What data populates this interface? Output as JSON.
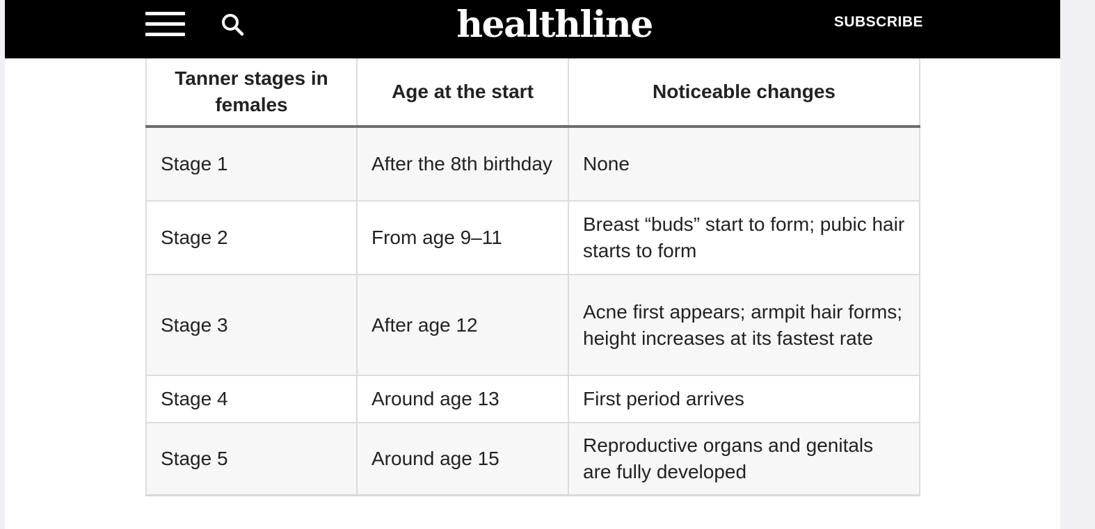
{
  "header": {
    "logo": "healthline",
    "subscribe_label": "SUBSCRIBE",
    "menu_icon": "hamburger-menu-icon",
    "search_icon": "search-icon"
  },
  "table": {
    "headers": [
      "Tanner stages in females",
      "Age at the start",
      "Noticeable changes"
    ],
    "rows": [
      [
        "Stage 1",
        "After the 8th birthday",
        "None"
      ],
      [
        "Stage 2",
        "From age 9–11",
        "Breast “buds” start to form; pubic hair starts to form"
      ],
      [
        "Stage 3",
        "After age 12",
        "Acne first appears; armpit hair forms; height increases at its fastest rate"
      ],
      [
        "Stage 4",
        "Around age 13",
        "First period arrives"
      ],
      [
        "Stage 5",
        "Around age 15",
        "Reproductive organs and genitals are fully developed"
      ]
    ]
  }
}
